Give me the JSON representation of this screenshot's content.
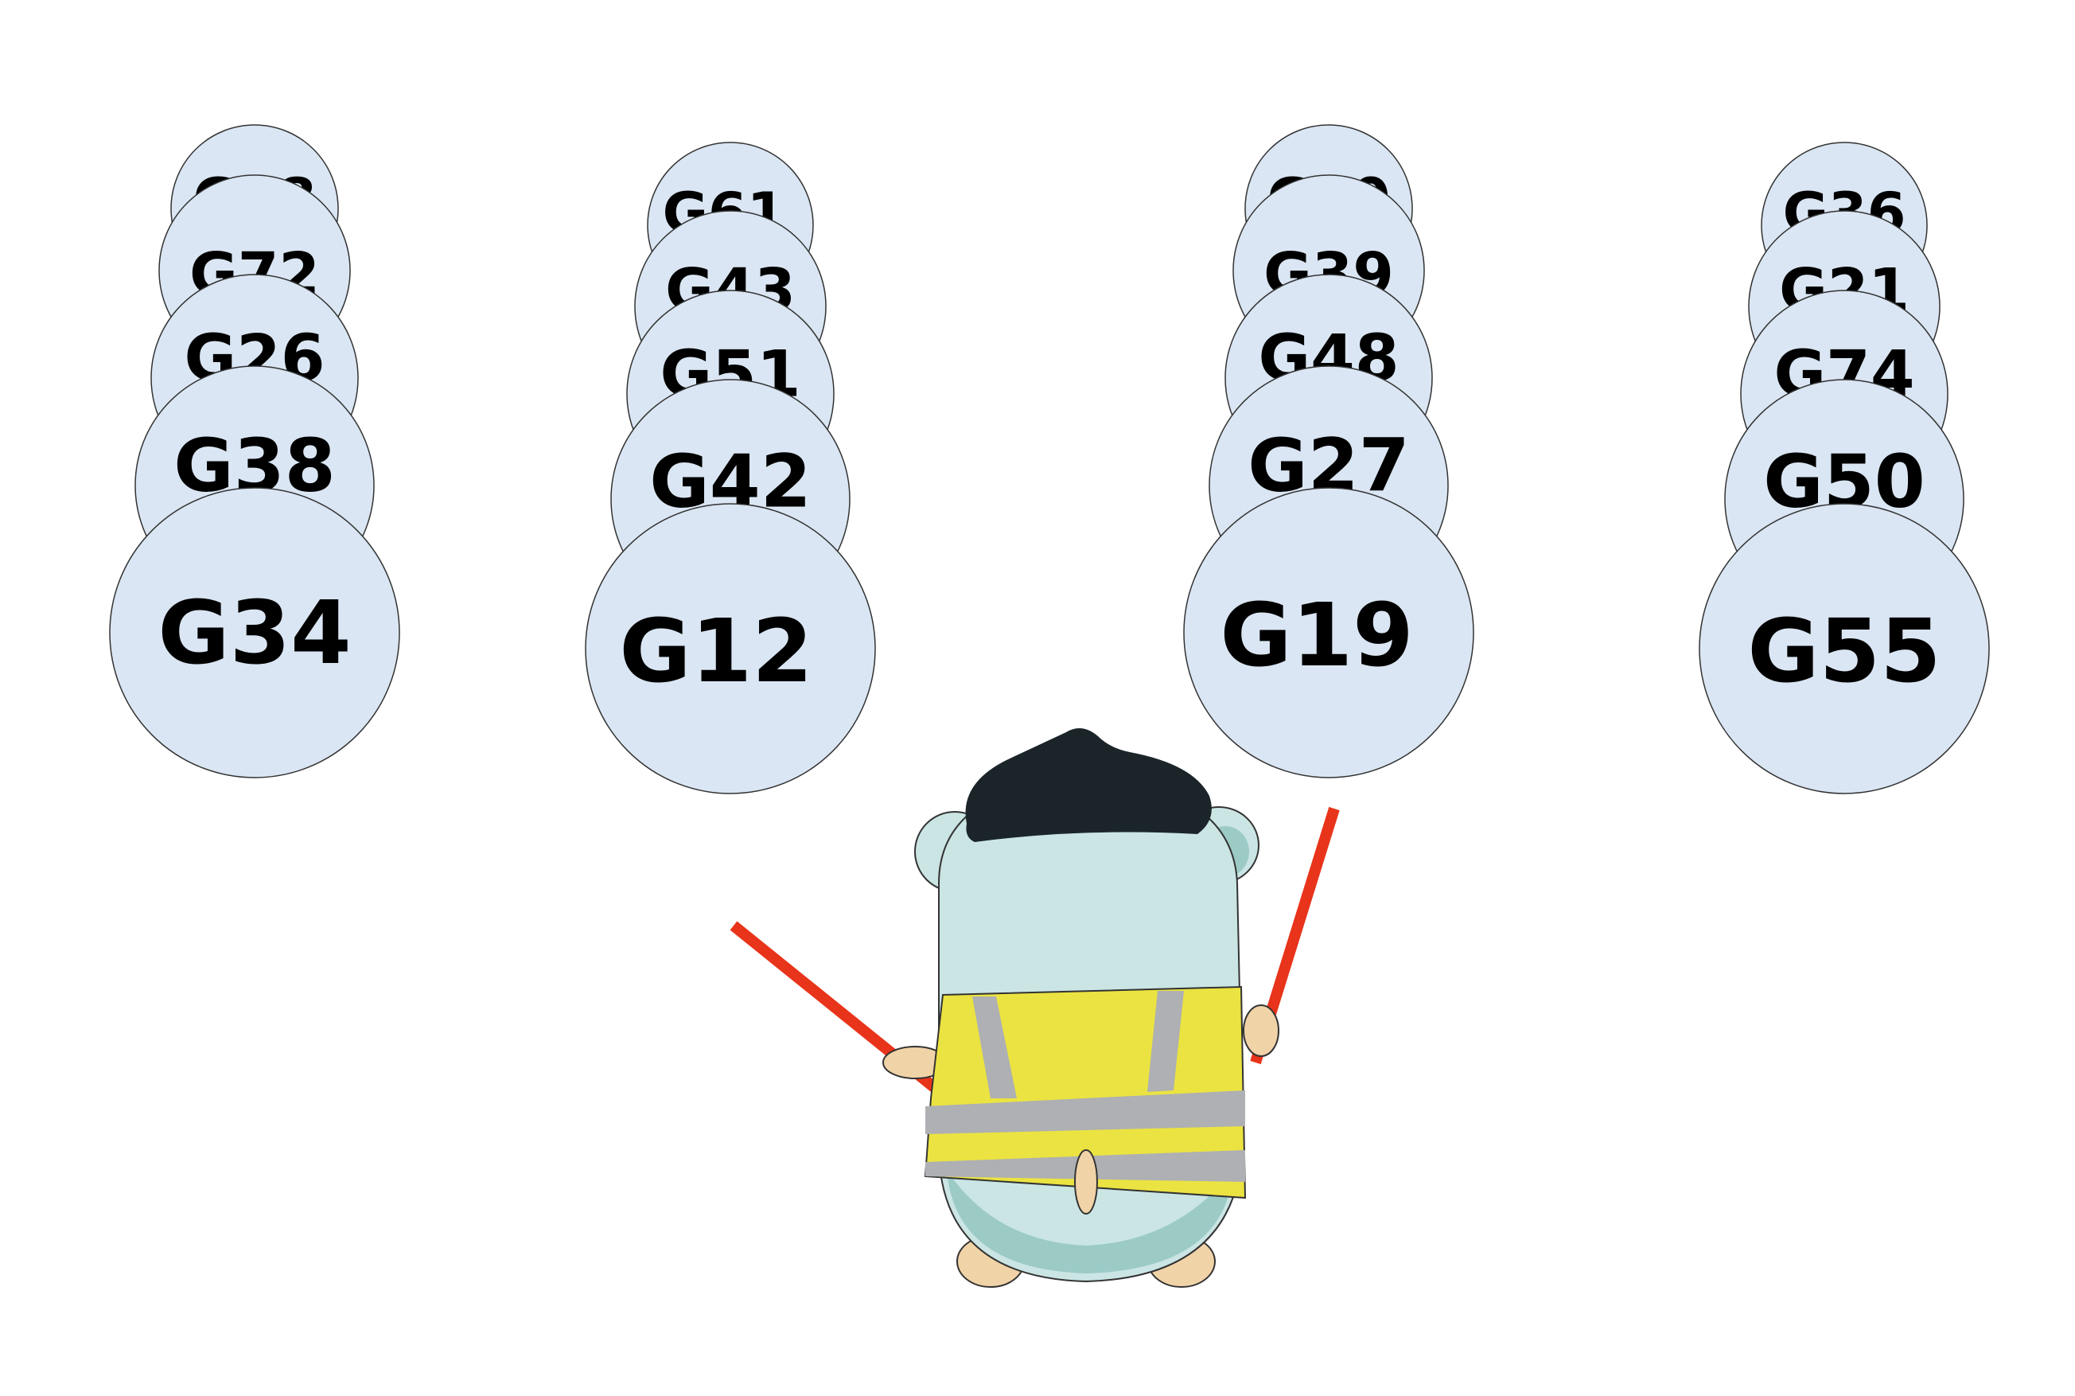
{
  "queues": [
    {
      "labels": [
        "G58",
        "G72",
        "G26",
        "G38",
        "G34"
      ]
    },
    {
      "labels": [
        "G61",
        "G43",
        "G51",
        "G42",
        "G12"
      ]
    },
    {
      "labels": [
        "G60",
        "G39",
        "G48",
        "G27",
        "G19"
      ]
    },
    {
      "labels": [
        "G36",
        "G21",
        "G74",
        "G50",
        "G55"
      ]
    }
  ],
  "colors": {
    "disc_fill": "#dae6f3",
    "gopher_body": "#cae5e4",
    "gopher_shadow": "#9ccbc6",
    "vest": "#ebe341",
    "vest_stripe": "#aeb0b3",
    "beret": "#1b2529",
    "baton": "#e8341a",
    "skin": "#f1d3a8"
  },
  "icons": [
    "gopher-traffic-controller-icon",
    "baton-icon"
  ]
}
